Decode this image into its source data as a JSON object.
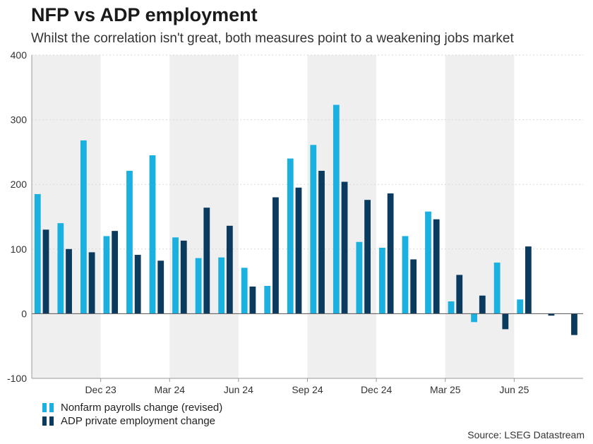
{
  "title": "NFP vs ADP employment",
  "subtitle": "Whilst the correlation isn't great, both measures point to a weakening jobs market",
  "source": "Source: LSEG Datastream",
  "colors": {
    "nfp": "#1ab0e0",
    "adp": "#0b3a5f",
    "shade": "#efefef",
    "axis": "#999999",
    "grid": "#d9d9d9"
  },
  "chart_data": {
    "type": "bar",
    "title": "NFP vs ADP employment",
    "xlabel": "",
    "ylabel": "",
    "ylim": [
      -100,
      400
    ],
    "yticks": [
      -100,
      0,
      100,
      200,
      300,
      400
    ],
    "grid": true,
    "months": [
      "Sep 23",
      "Oct 23",
      "Nov 23",
      "Dec 23",
      "Jan 24",
      "Feb 24",
      "Mar 24",
      "Apr 24",
      "May 24",
      "Jun 24",
      "Jul 24",
      "Aug 24",
      "Sep 24",
      "Oct 24",
      "Nov 24",
      "Dec 24",
      "Jan 25",
      "Feb 25",
      "Mar 25",
      "Apr 25",
      "May 25",
      "Jun 25",
      "Jul 25",
      "Aug 25"
    ],
    "xtick_labels": [
      {
        "month_index": 3,
        "label": "Dec 23"
      },
      {
        "month_index": 6,
        "label": "Mar 24"
      },
      {
        "month_index": 9,
        "label": "Jun 24"
      },
      {
        "month_index": 12,
        "label": "Sep 24"
      },
      {
        "month_index": 15,
        "label": "Dec 24"
      },
      {
        "month_index": 18,
        "label": "Mar 25"
      },
      {
        "month_index": 21,
        "label": "Jun 25"
      }
    ],
    "shaded_quarters": [
      [
        0,
        3
      ],
      [
        6,
        9
      ],
      [
        12,
        15
      ],
      [
        18,
        21
      ]
    ],
    "series": [
      {
        "name": "Nonfarm payrolls change (revised)",
        "color": "#1ab0e0",
        "values": [
          185,
          140,
          268,
          120,
          221,
          245,
          118,
          86,
          87,
          71,
          43,
          240,
          261,
          323,
          111,
          102,
          120,
          158,
          19,
          -13,
          79,
          22,
          null,
          null
        ]
      },
      {
        "name": "ADP private employment change",
        "color": "#0b3a5f",
        "values": [
          130,
          100,
          95,
          128,
          91,
          82,
          113,
          164,
          136,
          42,
          180,
          195,
          221,
          204,
          176,
          186,
          84,
          146,
          60,
          28,
          -24,
          104,
          -3,
          -33
        ]
      }
    ]
  },
  "legend": [
    {
      "label": "Nonfarm payrolls change (revised)"
    },
    {
      "label": "ADP private employment change"
    }
  ]
}
